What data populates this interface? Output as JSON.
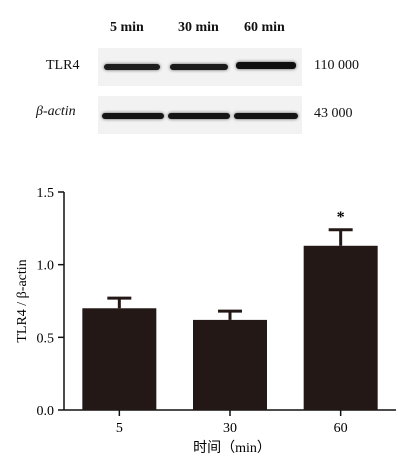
{
  "blot": {
    "lanes": [
      "5 min",
      "30 min",
      "60 min"
    ],
    "rows": [
      {
        "label": "TLR4",
        "mw": "110 000",
        "intensity": [
          0.85,
          0.9,
          1.0
        ]
      },
      {
        "label": "β-actin",
        "mw": "43 000",
        "intensity": [
          0.95,
          0.95,
          0.95
        ]
      }
    ]
  },
  "chart_data": {
    "type": "bar",
    "categories": [
      "5",
      "30",
      "60"
    ],
    "values": [
      0.7,
      0.62,
      1.13
    ],
    "errors": [
      0.07,
      0.06,
      0.11
    ],
    "significance": [
      "",
      "",
      "*"
    ],
    "xlabel": "时间（min）",
    "ylabel": "TLR4 / β-actin",
    "ylim": [
      0,
      1.5
    ],
    "yticks": [
      "0.0",
      "0.5",
      "1.0",
      "1.5"
    ],
    "bar_color": "#231815"
  }
}
